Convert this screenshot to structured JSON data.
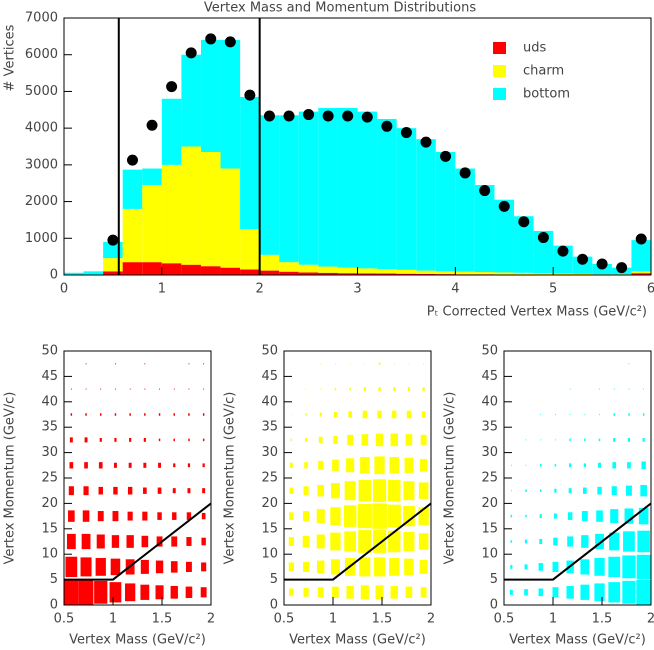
{
  "chart_data": [
    {
      "type": "histogram",
      "title": "Vertex Mass and Momentum Distributions",
      "ylabel": "# Vertices",
      "xlabel": "Pₜ Corrected Vertex Mass (GeV/c²)",
      "bins": [
        0,
        0.2,
        0.4,
        0.6,
        0.8,
        1,
        1.2,
        1.4,
        1.6,
        1.8,
        2,
        2.2,
        2.4,
        2.6,
        2.8,
        3,
        3.2,
        3.4,
        3.6,
        3.8,
        4,
        4.2,
        4.4,
        4.6,
        4.8,
        5,
        5.2,
        5.4,
        5.6,
        5.8,
        6
      ],
      "series": [
        {
          "name": "uds",
          "color": "#ff0000",
          "values": [
            0,
            0,
            100,
            350,
            350,
            320,
            280,
            240,
            200,
            150,
            120,
            90,
            70,
            60,
            50,
            45,
            40,
            35,
            30,
            25,
            20,
            20,
            15,
            15,
            10,
            10,
            10,
            10,
            10,
            50
          ]
        },
        {
          "name": "charm",
          "color": "#ffff00",
          "values": [
            0,
            0,
            360,
            1450,
            2100,
            2680,
            3220,
            3110,
            2700,
            1100,
            430,
            260,
            210,
            170,
            150,
            135,
            120,
            105,
            90,
            75,
            70,
            60,
            55,
            45,
            40,
            30,
            20,
            10,
            10,
            50
          ]
        },
        {
          "name": "bottom",
          "color": "#00ffff",
          "values": [
            60,
            100,
            440,
            1070,
            450,
            1800,
            2500,
            3050,
            3500,
            3600,
            3800,
            4000,
            4170,
            4320,
            4350,
            4270,
            4090,
            3860,
            3580,
            3250,
            2810,
            2370,
            1980,
            1540,
            1150,
            760,
            470,
            280,
            180,
            850
          ]
        }
      ],
      "points": {
        "x": [
          0.5,
          0.7,
          0.9,
          1.1,
          1.3,
          1.5,
          1.7,
          1.9,
          2.1,
          2.3,
          2.5,
          2.7,
          2.9,
          3.1,
          3.3,
          3.5,
          3.7,
          3.9,
          4.1,
          4.3,
          4.5,
          4.7,
          4.9,
          5.1,
          5.3,
          5.5,
          5.7,
          5.9
        ],
        "values": [
          950,
          3130,
          4080,
          5130,
          6050,
          6430,
          6350,
          4900,
          4330,
          4330,
          4370,
          4330,
          4330,
          4300,
          4050,
          3880,
          3620,
          3230,
          2780,
          2300,
          1870,
          1450,
          1020,
          650,
          430,
          300,
          200,
          980
        ]
      },
      "cuts": [
        0.56,
        2.0
      ],
      "xlim": [
        0,
        6
      ],
      "ylim": [
        0,
        7000
      ],
      "xticks": [
        0,
        1,
        2,
        3,
        4,
        5,
        6
      ],
      "yticks": [
        0,
        1000,
        2000,
        3000,
        4000,
        5000,
        6000,
        7000
      ],
      "legend": "top-right"
    },
    {
      "type": "box",
      "color": "#ff0000",
      "xlabel": "Vertex Mass (GeV/c²)",
      "ylabel": "Vertex Momentum (GeV/c)",
      "xlim": [
        0.5,
        2
      ],
      "ylim": [
        0,
        50
      ],
      "xticks": [
        0.5,
        1,
        1.5,
        2
      ],
      "yticks": [
        0,
        5,
        10,
        15,
        20,
        25,
        30,
        35,
        40,
        45,
        50
      ],
      "xbins": [
        0.5,
        0.65,
        0.8,
        0.95,
        1.1,
        1.25,
        1.4,
        1.55,
        1.7,
        1.85,
        2
      ],
      "ybins": [
        0,
        5,
        10,
        15,
        20,
        25,
        30,
        35,
        40,
        45,
        50
      ],
      "values": [
        [
          1,
          1,
          0.9,
          0.8,
          0.7,
          0.6,
          0.55,
          0.5,
          0.45,
          0.4
        ],
        [
          0.8,
          0.75,
          0.7,
          0.65,
          0.6,
          0.55,
          0.5,
          0.45,
          0.4,
          0.35
        ],
        [
          0.6,
          0.6,
          0.55,
          0.5,
          0.5,
          0.45,
          0.4,
          0.4,
          0.35,
          0.3
        ],
        [
          0.45,
          0.45,
          0.4,
          0.4,
          0.35,
          0.35,
          0.3,
          0.3,
          0.3,
          0.25
        ],
        [
          0.35,
          0.35,
          0.3,
          0.3,
          0.3,
          0.25,
          0.25,
          0.2,
          0.2,
          0.2
        ],
        [
          0.25,
          0.25,
          0.25,
          0.2,
          0.2,
          0.2,
          0.2,
          0.15,
          0.15,
          0.15
        ],
        [
          0.2,
          0.2,
          0.15,
          0.15,
          0.15,
          0.15,
          0.1,
          0.1,
          0.1,
          0.1
        ],
        [
          0.1,
          0.1,
          0.1,
          0.1,
          0.1,
          0.1,
          0.1,
          0.1,
          0.1,
          0.1
        ],
        [
          0.05,
          0.05,
          0.05,
          0.05,
          0.05,
          0.05,
          0.05,
          0.05,
          0.05,
          0.05
        ],
        [
          0,
          0.05,
          0,
          0.05,
          0,
          0.05,
          0,
          0,
          0.05,
          0.05
        ]
      ],
      "cut": {
        "x": [
          0.5,
          1,
          2
        ],
        "y": [
          5,
          5,
          20
        ]
      }
    },
    {
      "type": "box",
      "color": "#ffff00",
      "xlabel": "Vertex Mass (GeV/c²)",
      "ylabel": "Vertex Momentum (GeV/c)",
      "xlim": [
        0.5,
        2
      ],
      "ylim": [
        0,
        50
      ],
      "xticks": [
        0.5,
        1,
        1.5,
        2
      ],
      "yticks": [
        0,
        5,
        10,
        15,
        20,
        25,
        30,
        35,
        40,
        45,
        50
      ],
      "xbins": [
        0.5,
        0.65,
        0.8,
        0.95,
        1.1,
        1.25,
        1.4,
        1.55,
        1.7,
        1.85,
        2
      ],
      "ybins": [
        0,
        5,
        10,
        15,
        20,
        25,
        30,
        35,
        40,
        45,
        50
      ],
      "values": [
        [
          0.3,
          0.35,
          0.4,
          0.45,
          0.5,
          0.55,
          0.55,
          0.5,
          0.45,
          0.4
        ],
        [
          0.35,
          0.4,
          0.5,
          0.6,
          0.7,
          0.75,
          0.75,
          0.7,
          0.65,
          0.55
        ],
        [
          0.35,
          0.45,
          0.55,
          0.7,
          0.8,
          0.9,
          0.9,
          0.85,
          0.75,
          0.65
        ],
        [
          0.3,
          0.4,
          0.55,
          0.7,
          0.85,
          0.95,
          1,
          0.9,
          0.8,
          0.7
        ],
        [
          0.25,
          0.35,
          0.45,
          0.6,
          0.75,
          0.85,
          0.9,
          0.85,
          0.75,
          0.65
        ],
        [
          0.2,
          0.25,
          0.35,
          0.45,
          0.55,
          0.65,
          0.7,
          0.65,
          0.6,
          0.5
        ],
        [
          0.1,
          0.15,
          0.25,
          0.3,
          0.4,
          0.45,
          0.5,
          0.5,
          0.45,
          0.4
        ],
        [
          0.05,
          0.1,
          0.15,
          0.2,
          0.25,
          0.3,
          0.3,
          0.3,
          0.3,
          0.25
        ],
        [
          0,
          0.05,
          0.05,
          0.1,
          0.1,
          0.15,
          0.15,
          0.15,
          0.15,
          0.15
        ],
        [
          0,
          0,
          0.05,
          0.05,
          0.05,
          0.05,
          0.1,
          0.05,
          0.05,
          0.05
        ]
      ],
      "cut": {
        "x": [
          0.5,
          1,
          2
        ],
        "y": [
          5,
          5,
          20
        ]
      }
    },
    {
      "type": "box",
      "color": "#00ffff",
      "xlabel": "Vertex Mass (GeV/c²)",
      "ylabel": "Vertex Momentum (GeV/c)",
      "xlim": [
        0.5,
        2
      ],
      "ylim": [
        0,
        50
      ],
      "xticks": [
        0.5,
        1,
        1.5,
        2
      ],
      "yticks": [
        0,
        5,
        10,
        15,
        20,
        25,
        30,
        35,
        40,
        45,
        50
      ],
      "xbins": [
        0.5,
        0.65,
        0.8,
        0.95,
        1.1,
        1.25,
        1.4,
        1.55,
        1.7,
        1.85,
        2
      ],
      "ybins": [
        0,
        5,
        10,
        15,
        20,
        25,
        30,
        35,
        40,
        45,
        50
      ],
      "values": [
        [
          0.2,
          0.25,
          0.3,
          0.4,
          0.5,
          0.6,
          0.7,
          0.8,
          0.9,
          1
        ],
        [
          0.15,
          0.2,
          0.3,
          0.4,
          0.5,
          0.6,
          0.7,
          0.8,
          0.9,
          0.95
        ],
        [
          0.1,
          0.15,
          0.2,
          0.3,
          0.4,
          0.5,
          0.6,
          0.7,
          0.8,
          0.85
        ],
        [
          0.1,
          0.1,
          0.15,
          0.2,
          0.3,
          0.4,
          0.45,
          0.55,
          0.6,
          0.65
        ],
        [
          0.05,
          0.1,
          0.1,
          0.15,
          0.2,
          0.25,
          0.3,
          0.35,
          0.4,
          0.45
        ],
        [
          0.05,
          0.05,
          0.1,
          0.1,
          0.15,
          0.15,
          0.2,
          0.25,
          0.25,
          0.3
        ],
        [
          0,
          0.05,
          0.05,
          0.05,
          0.1,
          0.1,
          0.1,
          0.15,
          0.15,
          0.15
        ],
        [
          0,
          0,
          0.05,
          0.05,
          0.05,
          0.05,
          0.05,
          0.1,
          0.1,
          0.1
        ],
        [
          0,
          0,
          0,
          0,
          0.05,
          0,
          0.05,
          0.05,
          0.05,
          0.05
        ],
        [
          0,
          0,
          0,
          0,
          0,
          0,
          0,
          0,
          0.05,
          0
        ]
      ],
      "cut": {
        "x": [
          0.5,
          1,
          2
        ],
        "y": [
          5,
          5,
          20
        ]
      }
    }
  ]
}
